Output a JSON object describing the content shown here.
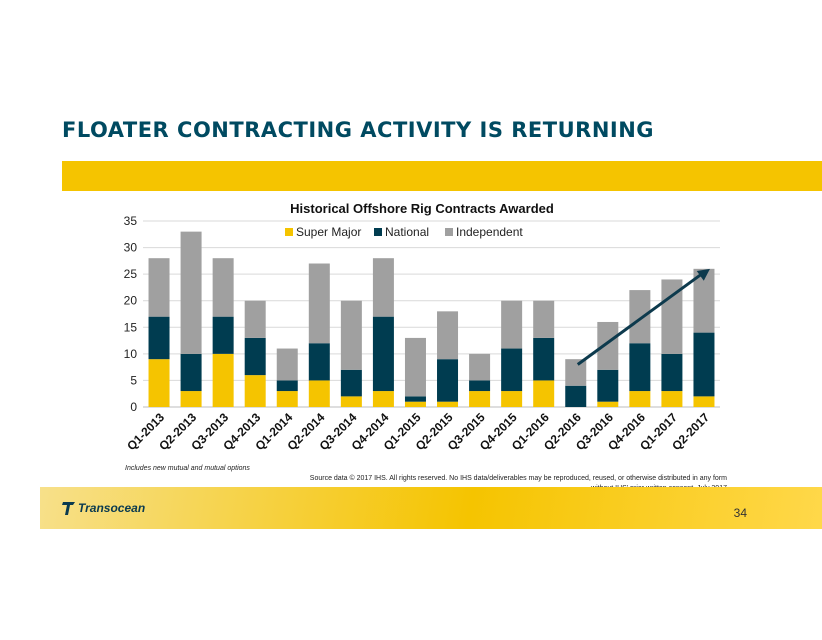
{
  "slide": {
    "title": "FLOATER CONTRACTING ACTIVITY IS RETURNING",
    "note": "Includes new mutual and mutual options",
    "source": "Source data © 2017 IHS. All rights reserved. No IHS data/deliverables may be reproduced, reused, or otherwise distributed in any form without IHS' prior written consent. July 2017",
    "logo_text": "Transocean",
    "page_number": "34"
  },
  "colors": {
    "title": "#004a61",
    "band": "#f5c400",
    "super_major": "#f5c400",
    "national": "#003c50",
    "independent": "#a0a0a0",
    "arrow": "#0d3a4d"
  },
  "chart_data": {
    "type": "bar",
    "stacked": true,
    "title": "Historical Offshore Rig Contracts Awarded",
    "categories": [
      "Q1-2013",
      "Q2-2013",
      "Q3-2013",
      "Q4-2013",
      "Q1-2014",
      "Q2-2014",
      "Q3-2014",
      "Q4-2014",
      "Q1-2015",
      "Q2-2015",
      "Q3-2015",
      "Q4-2015",
      "Q1-2016",
      "Q2-2016",
      "Q3-2016",
      "Q4-2016",
      "Q1-2017",
      "Q2-2017"
    ],
    "series": [
      {
        "name": "Super Major",
        "values": [
          9,
          3,
          10,
          6,
          3,
          5,
          2,
          3,
          1,
          1,
          3,
          3,
          5,
          0,
          1,
          3,
          3,
          2
        ]
      },
      {
        "name": "National",
        "values": [
          8,
          7,
          7,
          7,
          2,
          7,
          5,
          14,
          1,
          8,
          2,
          8,
          8,
          4,
          6,
          9,
          7,
          12
        ]
      },
      {
        "name": "Independent",
        "values": [
          11,
          23,
          11,
          7,
          6,
          15,
          13,
          11,
          11,
          9,
          5,
          9,
          7,
          5,
          9,
          10,
          14,
          12
        ]
      }
    ],
    "ylim": [
      0,
      35
    ],
    "yticks": [
      0,
      5,
      10,
      15,
      20,
      25,
      30,
      35
    ],
    "legend_position": "top",
    "grid": true,
    "annotation": {
      "type": "trend-arrow",
      "from_category": "Q2-2016",
      "from_value": 8,
      "to_category": "Q2-2017",
      "to_value": 26
    }
  }
}
